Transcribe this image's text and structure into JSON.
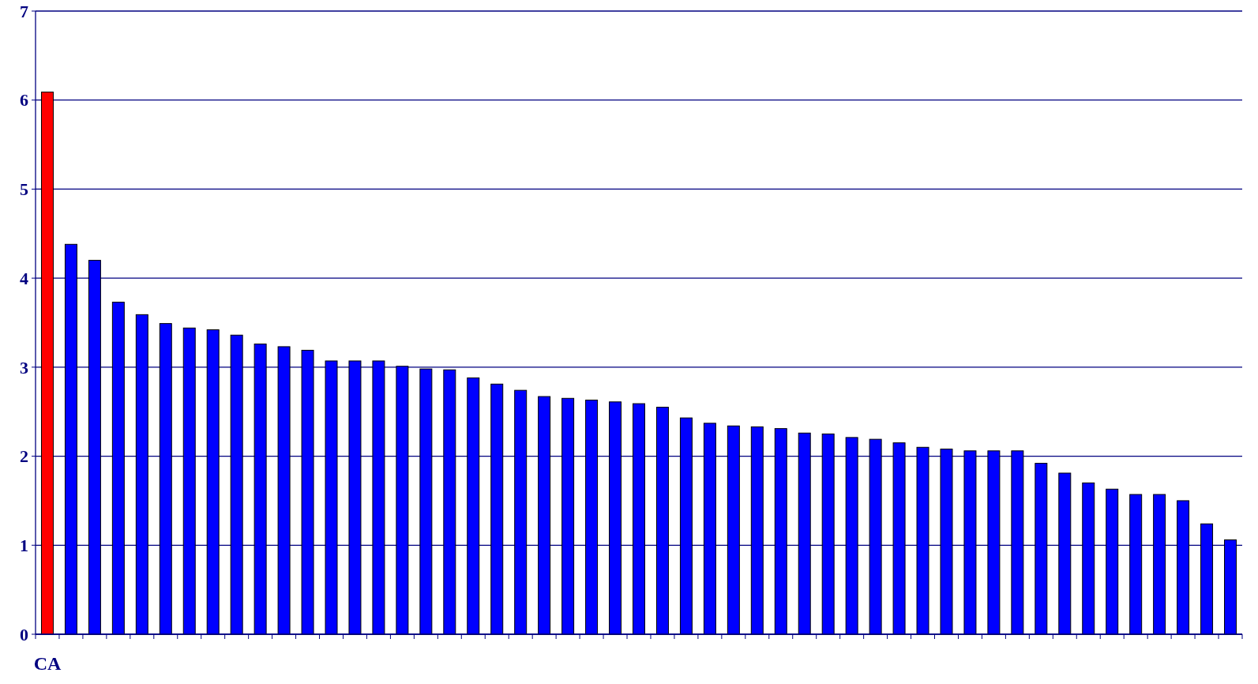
{
  "chart_data": {
    "type": "bar",
    "categories": [
      "CA",
      null,
      null,
      null,
      null,
      null,
      null,
      null,
      null,
      null,
      null,
      null,
      null,
      null,
      null,
      null,
      null,
      null,
      null,
      null,
      null,
      null,
      null,
      null,
      null,
      null,
      null,
      null,
      null,
      null,
      null,
      null,
      null,
      null,
      null,
      null,
      null,
      null,
      null,
      null,
      null,
      null,
      null,
      null,
      null,
      null,
      null,
      null,
      null,
      null,
      null
    ],
    "values": [
      6.09,
      4.38,
      4.2,
      3.73,
      3.59,
      3.49,
      3.44,
      3.42,
      3.36,
      3.26,
      3.23,
      3.19,
      3.07,
      3.07,
      3.07,
      3.01,
      2.98,
      2.97,
      2.88,
      2.81,
      2.74,
      2.67,
      2.65,
      2.63,
      2.61,
      2.59,
      2.55,
      2.43,
      2.37,
      2.34,
      2.33,
      2.31,
      2.26,
      2.25,
      2.21,
      2.19,
      2.15,
      2.1,
      2.08,
      2.06,
      2.06,
      2.06,
      1.92,
      1.81,
      1.7,
      1.63,
      1.57,
      1.57,
      1.5,
      1.24,
      1.06
    ],
    "colors": [
      "#ff0000",
      "#0000ff",
      "#0000ff",
      "#0000ff",
      "#0000ff",
      "#0000ff",
      "#0000ff",
      "#0000ff",
      "#0000ff",
      "#0000ff",
      "#0000ff",
      "#0000ff",
      "#0000ff",
      "#0000ff",
      "#0000ff",
      "#0000ff",
      "#0000ff",
      "#0000ff",
      "#0000ff",
      "#0000ff",
      "#0000ff",
      "#0000ff",
      "#0000ff",
      "#0000ff",
      "#0000ff",
      "#0000ff",
      "#0000ff",
      "#0000ff",
      "#0000ff",
      "#0000ff",
      "#0000ff",
      "#0000ff",
      "#0000ff",
      "#0000ff",
      "#0000ff",
      "#0000ff",
      "#0000ff",
      "#0000ff",
      "#0000ff",
      "#0000ff",
      "#0000ff",
      "#0000ff",
      "#0000ff",
      "#0000ff",
      "#0000ff",
      "#0000ff",
      "#0000ff",
      "#0000ff",
      "#0000ff",
      "#0000ff",
      "#0000ff"
    ],
    "ylim": [
      0,
      7
    ],
    "yticks": [
      0,
      1,
      2,
      3,
      4,
      5,
      6,
      7
    ],
    "grid": "y"
  }
}
